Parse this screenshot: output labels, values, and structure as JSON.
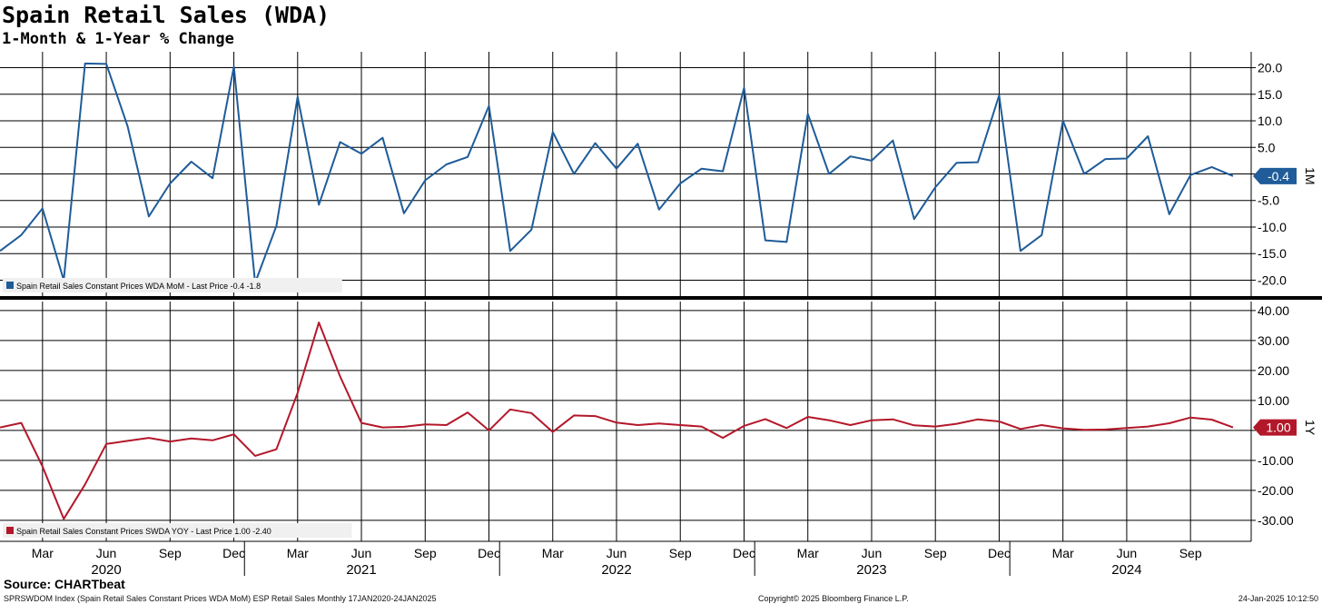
{
  "header": {
    "title": "Spain Retail Sales (WDA)",
    "subtitle": "1-Month & 1-Year % Change"
  },
  "footer": {
    "source": "Source: CHARTbeat",
    "index_info": "SPRSWDOM Index (Spain Retail Sales Constant Prices WDA MoM) ESP Retail Sales  Monthly 17JAN2020-24JAN2025",
    "copyright": "Copyright© 2025 Bloomberg Finance L.P.",
    "timestamp": "24-Jan-2025 10:12:50"
  },
  "colors": {
    "mom_series": "#1f5c99",
    "yoy_series": "#b3182a",
    "grid": "#000000",
    "background": "#ffffff"
  },
  "chart_data": [
    {
      "type": "line",
      "panel": "top",
      "x_start": "2020-01",
      "x_end": "2024-11",
      "ylim": [
        -23,
        23
      ],
      "yticks": [
        "20.0",
        "15.0",
        "10.0",
        "5.0",
        "0.0",
        "-5.0",
        "-10.0",
        "-15.0",
        "-20.0"
      ],
      "ytick_values": [
        20,
        15,
        10,
        5,
        0,
        -5,
        -10,
        -15,
        -20
      ],
      "axis_label": "1M",
      "last_value_label": "-0.4",
      "legend": "Spain Retail Sales Constant Prices WDA MoM - Last Price -0.4  -1.8",
      "series": [
        {
          "name": "Spain Retail Sales Constant Prices WDA MoM",
          "values": [
            -14.5,
            -11.5,
            -6.5,
            -20.0,
            20.8,
            20.7,
            9.0,
            -8.0,
            -1.8,
            2.3,
            -0.8,
            20.2,
            -20.5,
            -9.8,
            14.5,
            -5.8,
            6.0,
            3.8,
            6.8,
            -7.4,
            -1.2,
            1.8,
            3.2,
            12.8,
            -14.5,
            -10.5,
            7.9,
            0.0,
            5.8,
            1.0,
            5.7,
            -6.7,
            -1.8,
            1.0,
            0.5,
            16.2,
            -12.5,
            -12.8,
            11.3,
            0.0,
            3.3,
            2.5,
            6.3,
            -8.5,
            -2.5,
            2.1,
            2.2,
            14.8,
            -14.5,
            -11.5,
            10.0,
            0.0,
            2.8,
            2.9,
            7.1,
            -7.6,
            -0.2,
            1.3,
            -0.4
          ]
        }
      ]
    },
    {
      "type": "line",
      "panel": "bottom",
      "x_start": "2020-01",
      "x_end": "2024-11",
      "ylim": [
        -37,
        43
      ],
      "yticks": [
        "40.00",
        "30.00",
        "20.00",
        "10.00",
        "0.00",
        "-10.00",
        "-20.00",
        "-30.00"
      ],
      "ytick_values": [
        40,
        30,
        20,
        10,
        0,
        -10,
        -20,
        -30
      ],
      "axis_label": "1Y",
      "last_value_label": "1.00",
      "legend": "Spain Retail Sales Constant Prices SWDA YOY - Last Price 1.00  -2.40",
      "series": [
        {
          "name": "Spain Retail Sales Constant Prices SWDA YOY",
          "values": [
            1.0,
            2.5,
            -12.0,
            -29.5,
            -18.0,
            -4.5,
            -3.5,
            -2.5,
            -3.7,
            -2.7,
            -3.3,
            -1.3,
            -8.5,
            -6.3,
            12.5,
            36.0,
            18.0,
            2.5,
            1.0,
            1.2,
            2.0,
            1.8,
            6.0,
            0.0,
            7.0,
            5.8,
            -0.5,
            5.0,
            4.8,
            2.6,
            1.8,
            2.3,
            1.8,
            1.3,
            -2.5,
            1.5,
            3.8,
            0.8,
            4.5,
            3.4,
            1.8,
            3.4,
            3.7,
            1.7,
            1.3,
            2.2,
            3.7,
            3.0,
            0.5,
            1.8,
            0.7,
            0.2,
            0.3,
            0.8,
            1.3,
            2.4,
            4.3,
            3.6,
            1.0
          ]
        }
      ]
    }
  ],
  "x_axis": {
    "month_labels": [
      "Mar",
      "Jun",
      "Sep",
      "Dec",
      "Mar",
      "Jun",
      "Sep",
      "Dec",
      "Mar",
      "Jun",
      "Sep",
      "Dec",
      "Mar",
      "Jun",
      "Sep",
      "Dec",
      "Mar",
      "Jun",
      "Sep"
    ],
    "year_labels": [
      "2020",
      "2021",
      "2022",
      "2023",
      "2024"
    ]
  }
}
